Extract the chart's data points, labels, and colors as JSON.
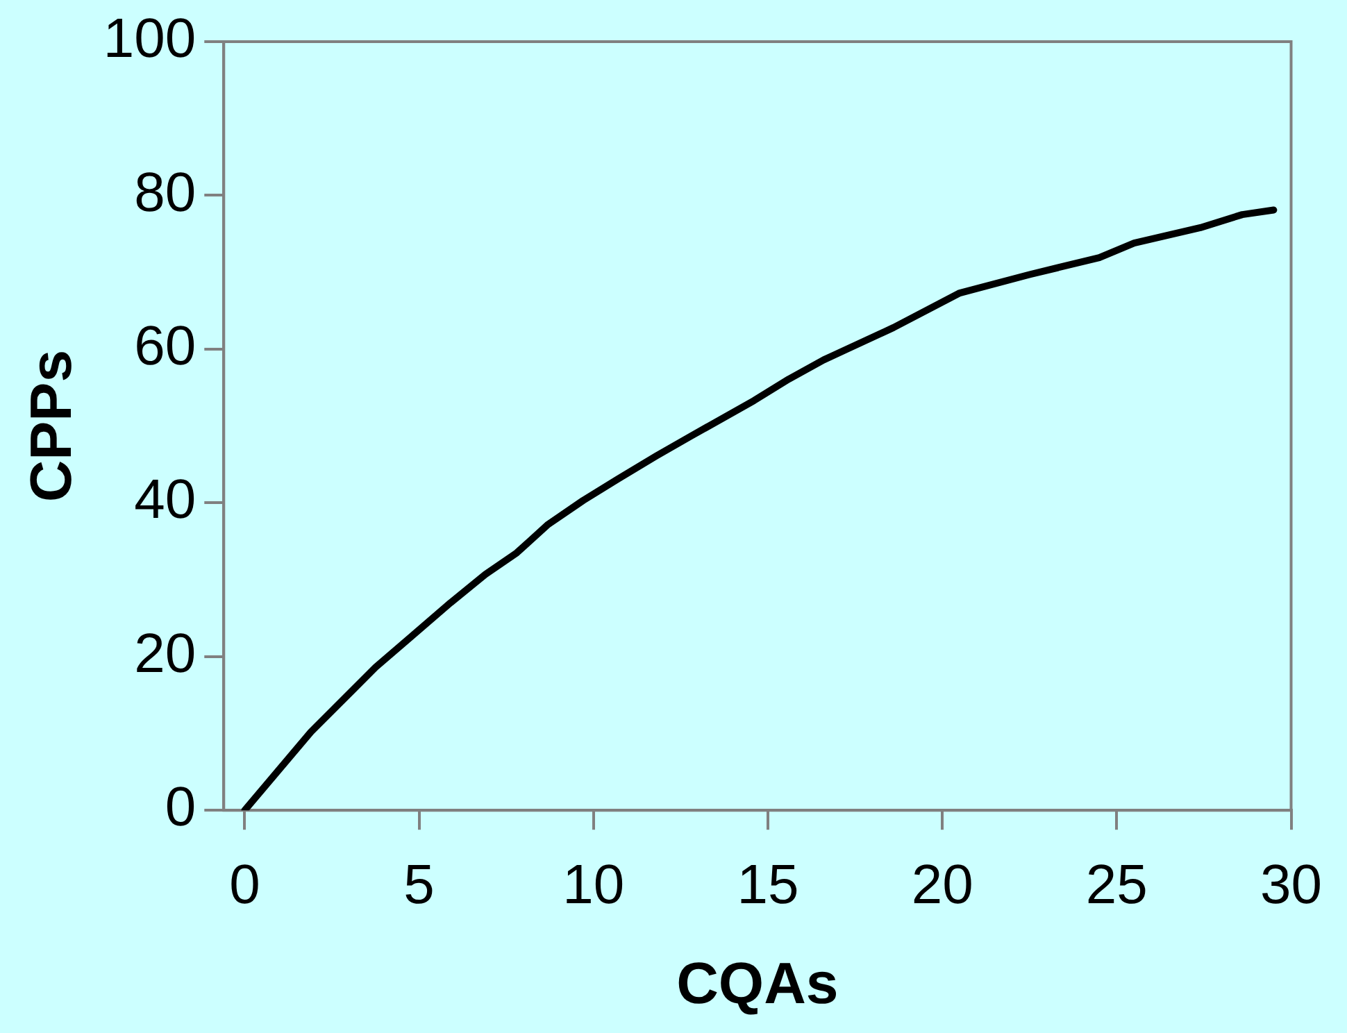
{
  "chart_data": {
    "type": "line",
    "xlabel": "CQAs",
    "ylabel": "CPPs",
    "xlim": [
      -0.6,
      30
    ],
    "ylim": [
      0,
      100
    ],
    "xticks": [
      0,
      5,
      10,
      15,
      20,
      25,
      30
    ],
    "yticks": [
      0,
      20,
      40,
      60,
      80,
      100
    ],
    "grid": false,
    "legend": false,
    "marker": "none",
    "series": [
      {
        "color": "#000000",
        "x": [
          0,
          1.9,
          3.75,
          4.7,
          5.9,
          6.9,
          7.8,
          8.7,
          9.7,
          10.7,
          11.8,
          12.8,
          14.6,
          15.6,
          16.6,
          18.6,
          20.5,
          22.5,
          24.5,
          25.5,
          27.4,
          28.6,
          29.5
        ],
        "values": [
          0,
          10.2,
          18.6,
          22.3,
          27,
          30.7,
          33.5,
          37.2,
          40.3,
          43.1,
          46.1,
          48.7,
          53.3,
          56.1,
          58.6,
          62.8,
          67.3,
          69.7,
          71.9,
          73.8,
          75.8,
          77.5,
          78.1
        ]
      }
    ]
  }
}
